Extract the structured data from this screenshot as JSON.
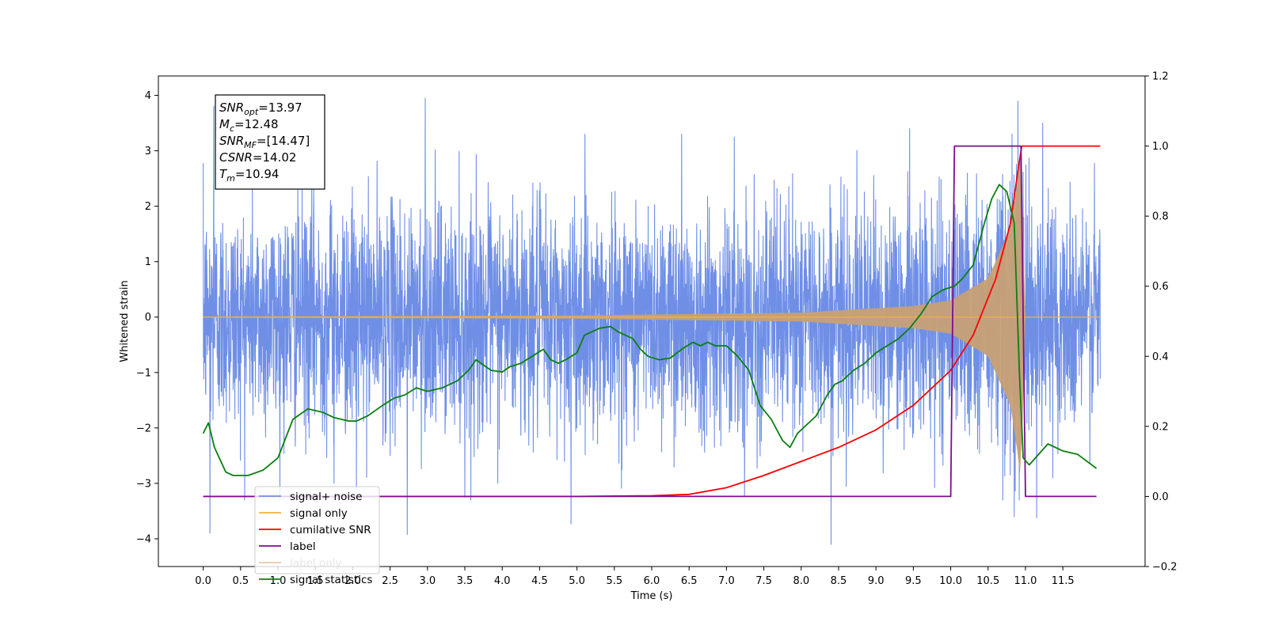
{
  "chart_data": {
    "type": "line",
    "xlabel": "Time (s)",
    "ylabel": "Whitened strain",
    "ylabel_right": "",
    "xlim": [
      -0.6,
      12.6
    ],
    "ylim": [
      -4.5,
      4.35
    ],
    "ylim_right": [
      -0.2,
      1.2
    ],
    "x_ticks": [
      0.0,
      0.5,
      1.0,
      1.5,
      2.0,
      2.5,
      3.0,
      3.5,
      4.0,
      4.5,
      5.0,
      5.5,
      6.0,
      6.5,
      7.0,
      7.5,
      8.0,
      8.5,
      9.0,
      9.5,
      10.0,
      10.5,
      11.0,
      11.5
    ],
    "x_tick_labels": [
      "0.0",
      "0.5",
      "1.0",
      "1.5",
      "2.0",
      "2.5",
      "3.0",
      "3.5",
      "4.0",
      "4.5",
      "5.0",
      "5.5",
      "6.0",
      "6.5",
      "7.0",
      "7.5",
      "8.0",
      "8.5",
      "9.0",
      "9.5",
      "10.0",
      "10.5",
      "11.0",
      "11.5"
    ],
    "y_ticks": [
      -4,
      -3,
      -2,
      -1,
      0,
      1,
      2,
      3,
      4
    ],
    "y_tick_labels": [
      "−4",
      "−3",
      "−2",
      "−1",
      "0",
      "1",
      "2",
      "3",
      "4"
    ],
    "y_right_ticks": [
      -0.2,
      0.0,
      0.2,
      0.4,
      0.6,
      0.8,
      1.0,
      1.2
    ],
    "y_right_tick_labels": [
      "−0.2",
      "0.0",
      "0.2",
      "0.4",
      "0.6",
      "0.8",
      "1.0",
      "1.2"
    ],
    "grid": false,
    "legend_placement": "lower-left",
    "stats_box": [
      {
        "symbol": "SNR",
        "sub": "opt",
        "value": "=13.97"
      },
      {
        "symbol": "M",
        "sub": "c",
        "value": "=12.48"
      },
      {
        "symbol": "SNR",
        "sub": "MF",
        "value": "=[14.47]"
      },
      {
        "symbol": "CSNR",
        "sub": "",
        "value": "=14.02"
      },
      {
        "symbol": "T",
        "sub": "m",
        "value": "=10.94"
      }
    ],
    "series": [
      {
        "name": "signal+ noise",
        "axis": "left",
        "color": "#6f8fe6",
        "kind": "noise",
        "x_range": [
          0.0,
          12.0
        ],
        "amplitude": 1.0,
        "extremes": [
          [
            0.09,
            -3.9
          ],
          [
            0.14,
            3.8
          ],
          [
            2.97,
            3.95
          ],
          [
            2.73,
            -3.92
          ],
          [
            4.92,
            -3.73
          ],
          [
            6.4,
            3.3
          ],
          [
            8.4,
            -4.1
          ],
          [
            9.45,
            3.4
          ],
          [
            10.85,
            -3.6
          ],
          [
            10.9,
            3.9
          ],
          [
            11.15,
            -3.62
          ],
          [
            11.23,
            3.5
          ],
          [
            1.75,
            -3.0
          ],
          [
            2.05,
            -3.1
          ],
          [
            3.5,
            -3.25
          ]
        ]
      },
      {
        "name": "signal only",
        "axis": "left",
        "color": "#f5b041",
        "fill": "#c7a075",
        "kind": "chirp",
        "x_range": [
          0.0,
          12.0
        ],
        "t_merger": 10.94,
        "amplitude_envelope": [
          [
            0.0,
            0.01
          ],
          [
            5.0,
            0.03
          ],
          [
            8.0,
            0.08
          ],
          [
            9.5,
            0.2
          ],
          [
            10.0,
            0.3
          ],
          [
            10.5,
            0.7
          ],
          [
            10.8,
            1.6
          ],
          [
            10.9,
            2.5
          ],
          [
            10.94,
            3.0
          ],
          [
            11.0,
            0.0
          ]
        ]
      },
      {
        "name": "cumilative SNR",
        "axis": "right",
        "color": "#ff0000",
        "x": [
          0.0,
          5.0,
          6.0,
          6.5,
          7.0,
          7.5,
          8.0,
          8.5,
          9.0,
          9.5,
          10.0,
          10.3,
          10.6,
          10.8,
          10.9,
          10.95,
          11.0,
          12.0
        ],
        "y": [
          0.0,
          0.0,
          0.002,
          0.006,
          0.025,
          0.06,
          0.1,
          0.14,
          0.19,
          0.26,
          0.36,
          0.46,
          0.62,
          0.78,
          0.93,
          1.0,
          1.0,
          1.0
        ]
      },
      {
        "name": "label",
        "axis": "right",
        "color": "#7b0f8c",
        "x": [
          0.0,
          10.0,
          10.05,
          10.94,
          11.0,
          11.95
        ],
        "y": [
          0.0,
          0.0,
          1.0,
          1.0,
          0.0,
          0.0
        ]
      },
      {
        "name": "signal statistics",
        "axis": "right",
        "color": "#0a7f10",
        "x": [
          0.0,
          0.07,
          0.15,
          0.3,
          0.4,
          0.6,
          0.8,
          1.0,
          1.2,
          1.4,
          1.6,
          1.75,
          1.85,
          1.95,
          2.05,
          2.2,
          2.4,
          2.55,
          2.7,
          2.85,
          3.0,
          3.2,
          3.4,
          3.55,
          3.65,
          3.75,
          3.85,
          4.0,
          4.1,
          4.25,
          4.4,
          4.55,
          4.65,
          4.75,
          4.85,
          5.0,
          5.1,
          5.3,
          5.45,
          5.55,
          5.65,
          5.75,
          5.85,
          5.95,
          6.1,
          6.25,
          6.4,
          6.55,
          6.65,
          6.75,
          6.85,
          7.0,
          7.15,
          7.3,
          7.45,
          7.6,
          7.75,
          7.85,
          7.95,
          8.05,
          8.2,
          8.35,
          8.45,
          8.55,
          8.7,
          8.85,
          9.0,
          9.15,
          9.3,
          9.45,
          9.6,
          9.75,
          9.9,
          10.05,
          10.15,
          10.3,
          10.45,
          10.55,
          10.65,
          10.75,
          10.85,
          10.92,
          10.97,
          11.05,
          11.3,
          11.5,
          11.7,
          11.95
        ],
        "y": [
          0.18,
          0.21,
          0.14,
          0.07,
          0.06,
          0.06,
          0.075,
          0.11,
          0.22,
          0.25,
          0.24,
          0.225,
          0.22,
          0.215,
          0.215,
          0.23,
          0.26,
          0.28,
          0.29,
          0.31,
          0.3,
          0.31,
          0.33,
          0.36,
          0.39,
          0.375,
          0.36,
          0.355,
          0.37,
          0.38,
          0.4,
          0.42,
          0.39,
          0.38,
          0.39,
          0.41,
          0.46,
          0.48,
          0.485,
          0.47,
          0.46,
          0.45,
          0.42,
          0.4,
          0.39,
          0.395,
          0.42,
          0.44,
          0.43,
          0.44,
          0.43,
          0.43,
          0.4,
          0.36,
          0.26,
          0.22,
          0.16,
          0.14,
          0.18,
          0.2,
          0.23,
          0.29,
          0.32,
          0.33,
          0.36,
          0.38,
          0.41,
          0.43,
          0.45,
          0.48,
          0.52,
          0.57,
          0.59,
          0.6,
          0.62,
          0.66,
          0.78,
          0.85,
          0.89,
          0.87,
          0.78,
          0.35,
          0.11,
          0.09,
          0.15,
          0.13,
          0.12,
          0.08
        ]
      },
      {
        "name": "label only",
        "axis": "right",
        "color": "#e8c8a8",
        "kind": "legend-only"
      }
    ]
  }
}
